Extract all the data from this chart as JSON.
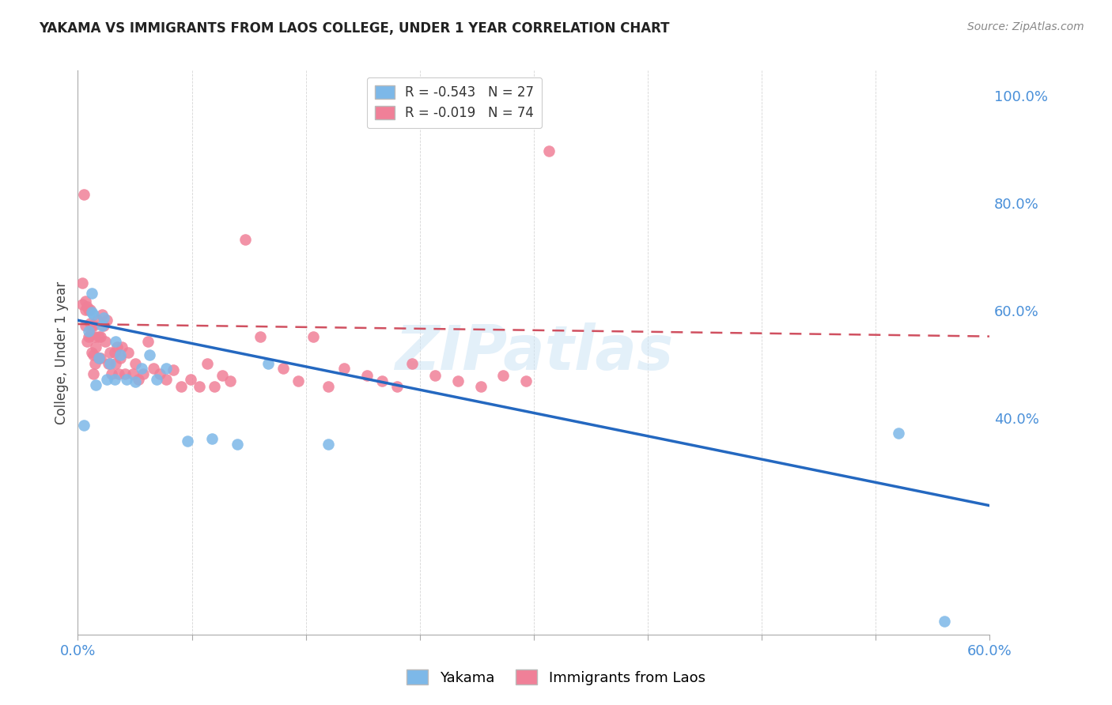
{
  "title": "YAKAMA VS IMMIGRANTS FROM LAOS COLLEGE, UNDER 1 YEAR CORRELATION CHART",
  "source": "Source: ZipAtlas.com",
  "ylabel": "College, Under 1 year",
  "right_yticks_vals": [
    1.0,
    0.8,
    0.6,
    0.4
  ],
  "right_yticks_labels": [
    "100.0%",
    "80.0%",
    "60.0%",
    "40.0%"
  ],
  "legend": [
    {
      "label": "R = -0.543   N = 27",
      "color": "#a8c4e0"
    },
    {
      "label": "R = -0.019   N = 74",
      "color": "#f4a0b0"
    }
  ],
  "series1_name": "Yakama",
  "series2_name": "Immigrants from Laos",
  "series1_color": "#7db8e8",
  "series2_color": "#f08098",
  "trendline1_color": "#2468c0",
  "trendline2_color": "#d05060",
  "watermark": "ZIPatlas",
  "xmin": 0.0,
  "xmax": 0.6,
  "ymin": 0.0,
  "ymax": 1.05,
  "trendline1_x": [
    0.0,
    0.6
  ],
  "trendline1_y": [
    0.585,
    0.24
  ],
  "trendline2_x": [
    0.0,
    0.6
  ],
  "trendline2_y": [
    0.578,
    0.555
  ],
  "yakama_x": [
    0.004,
    0.007,
    0.009,
    0.009,
    0.01,
    0.012,
    0.014,
    0.016,
    0.017,
    0.019,
    0.021,
    0.024,
    0.025,
    0.028,
    0.032,
    0.038,
    0.042,
    0.047,
    0.052,
    0.058,
    0.072,
    0.088,
    0.105,
    0.125,
    0.165,
    0.54,
    0.57
  ],
  "yakama_y": [
    0.39,
    0.565,
    0.6,
    0.635,
    0.595,
    0.465,
    0.515,
    0.575,
    0.59,
    0.475,
    0.505,
    0.475,
    0.545,
    0.52,
    0.475,
    0.47,
    0.495,
    0.52,
    0.475,
    0.495,
    0.36,
    0.365,
    0.355,
    0.505,
    0.355,
    0.375,
    0.025
  ],
  "laos_x": [
    0.003,
    0.003,
    0.004,
    0.005,
    0.005,
    0.005,
    0.006,
    0.006,
    0.007,
    0.007,
    0.008,
    0.008,
    0.008,
    0.009,
    0.009,
    0.01,
    0.01,
    0.01,
    0.011,
    0.011,
    0.012,
    0.013,
    0.014,
    0.014,
    0.015,
    0.015,
    0.016,
    0.017,
    0.018,
    0.019,
    0.02,
    0.021,
    0.022,
    0.024,
    0.025,
    0.026,
    0.027,
    0.028,
    0.029,
    0.031,
    0.033,
    0.036,
    0.038,
    0.04,
    0.043,
    0.046,
    0.05,
    0.054,
    0.058,
    0.063,
    0.068,
    0.074,
    0.08,
    0.085,
    0.09,
    0.095,
    0.1,
    0.11,
    0.12,
    0.135,
    0.145,
    0.155,
    0.165,
    0.175,
    0.19,
    0.2,
    0.21,
    0.22,
    0.235,
    0.25,
    0.265,
    0.28,
    0.295,
    0.31
  ],
  "laos_y": [
    0.615,
    0.655,
    0.82,
    0.575,
    0.605,
    0.62,
    0.545,
    0.61,
    0.555,
    0.605,
    0.558,
    0.58,
    0.605,
    0.525,
    0.575,
    0.485,
    0.52,
    0.575,
    0.505,
    0.555,
    0.535,
    0.585,
    0.514,
    0.555,
    0.515,
    0.555,
    0.595,
    0.575,
    0.545,
    0.585,
    0.505,
    0.525,
    0.485,
    0.525,
    0.505,
    0.535,
    0.485,
    0.515,
    0.535,
    0.485,
    0.525,
    0.485,
    0.505,
    0.475,
    0.485,
    0.545,
    0.495,
    0.485,
    0.475,
    0.492,
    0.462,
    0.475,
    0.462,
    0.505,
    0.462,
    0.482,
    0.472,
    0.735,
    0.555,
    0.495,
    0.472,
    0.555,
    0.462,
    0.495,
    0.482,
    0.472,
    0.462,
    0.505,
    0.482,
    0.472,
    0.462,
    0.482,
    0.472,
    0.9
  ]
}
